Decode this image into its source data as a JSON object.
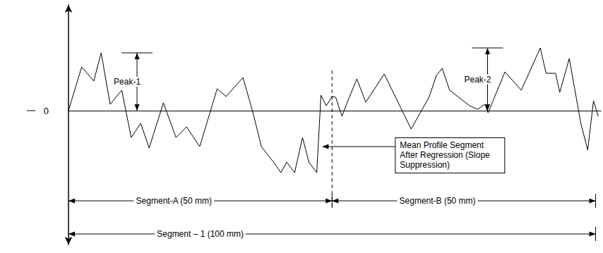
{
  "chart_data": {
    "type": "line",
    "color": "#000000",
    "x": [
      0,
      2.5,
      4.8,
      6.2,
      7.9,
      10.1,
      11.9,
      13.7,
      15.3,
      18.0,
      20.4,
      22.4,
      24.9,
      28.2,
      29.9,
      33.1,
      35.0,
      36.6,
      38.9,
      40.3,
      41.4,
      42.9,
      44.4,
      45.6,
      47.1,
      47.9,
      48.9,
      50.0,
      50.7,
      51.9,
      53.0,
      54.7,
      56.4,
      59.9,
      65.0,
      68.4,
      69.8,
      70.9,
      72.3,
      76.1,
      77.6,
      79.0,
      79.6,
      82.8,
      85.9,
      89.5,
      90.6,
      92.4,
      93.2,
      95.0,
      97.2,
      98.5,
      99.6,
      100.5
    ],
    "values": [
      0,
      6.2,
      4.2,
      8.2,
      0.9,
      2.9,
      -3.8,
      -1.8,
      -5.3,
      1.1,
      -3.8,
      -2.3,
      -5.1,
      3.1,
      2.0,
      4.7,
      -0.3,
      -5.1,
      -7.3,
      -8.8,
      -7.3,
      -8.8,
      -3.8,
      -7.3,
      -8.8,
      2.2,
      0.7,
      2.0,
      1.9,
      -0.8,
      1.4,
      4.5,
      1.2,
      5.2,
      -2.6,
      1.9,
      5.0,
      6.0,
      2.9,
      0.7,
      0.2,
      0.9,
      -0.3,
      5.5,
      2.9,
      8.9,
      5.3,
      5.3,
      2.6,
      7.4,
      -1.8,
      -5.6,
      1.4,
      -0.8
    ],
    "xlim": [
      0,
      101
    ],
    "ylim": [
      -19,
      15
    ],
    "yticks": [
      0
    ],
    "tick_labels": "y",
    "grid": false,
    "peaks": [
      {
        "label": "Peak-1",
        "x": 13.0,
        "value": 8.2
      },
      {
        "label": "Peak-2",
        "x": 79.5,
        "value": 8.9
      }
    ],
    "segments": [
      {
        "label": "Segment-A (50 mm)",
        "start": 0,
        "end": 50
      },
      {
        "label": "Segment-B (50 mm)",
        "start": 50,
        "end": 100
      },
      {
        "label": "Segment – 1 (100 mm)",
        "start": 0,
        "end": 100
      }
    ],
    "callout": {
      "text": "Mean Profile Segment After Regression (Slope Suppression)",
      "x": 48,
      "y": -5.1
    }
  }
}
